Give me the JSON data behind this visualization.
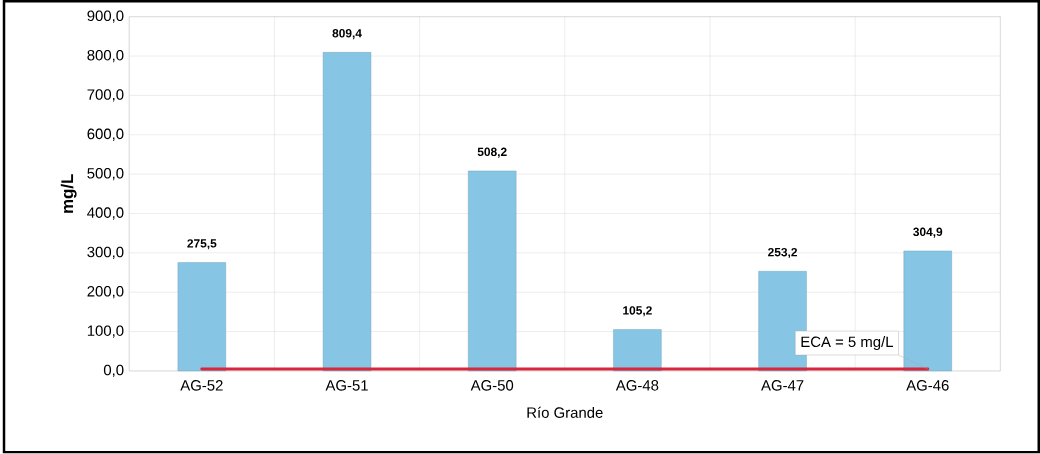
{
  "chart_data": {
    "type": "bar",
    "ylabel": "mg/L",
    "xlabel": "Río Grande",
    "categories": [
      "AG-52",
      "AG-51",
      "AG-50",
      "AG-48",
      "AG-47",
      "AG-46"
    ],
    "values": [
      275.5,
      809.4,
      508.2,
      105.2,
      253.2,
      304.9
    ],
    "value_labels": [
      "275,5",
      "809,4",
      "508,2",
      "105,2",
      "253,2",
      "304,9"
    ],
    "color": "#86c5e3",
    "ylim": [
      0,
      900
    ],
    "yticks": [
      {
        "value": 0,
        "label": "0,0"
      },
      {
        "value": 100,
        "label": "100,0"
      },
      {
        "value": 200,
        "label": "200,0"
      },
      {
        "value": 300,
        "label": "300,0"
      },
      {
        "value": 400,
        "label": "400,0"
      },
      {
        "value": 500,
        "label": "500,0"
      },
      {
        "value": 600,
        "label": "600,0"
      },
      {
        "value": 700,
        "label": "700,0"
      },
      {
        "value": 800,
        "label": "800,0"
      },
      {
        "value": 900,
        "label": "900,0"
      }
    ],
    "ref_lines": [
      {
        "axis": "y",
        "value": 5,
        "label": "ECA = 5 mg/L",
        "color": "#d7263d"
      }
    ],
    "grid": true
  }
}
